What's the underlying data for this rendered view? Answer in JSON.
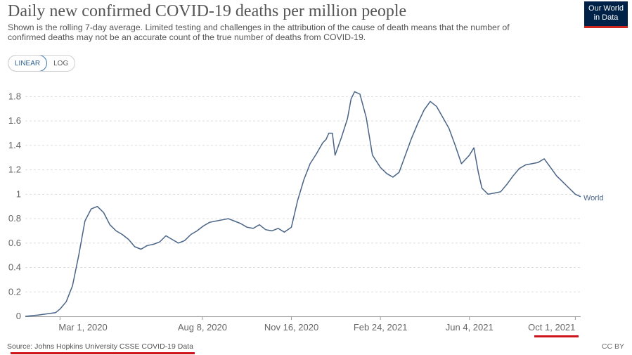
{
  "header": {
    "title": "Daily new confirmed COVID-19 deaths per million people",
    "subtitle": "Shown is the rolling 7-day average. Limited testing and challenges in the attribution of the cause of death means that the number of confirmed deaths may not be an accurate count of the true number of deaths from COVID-19."
  },
  "logo": {
    "line1": "Our World",
    "line2": "in Data"
  },
  "toggle": {
    "linear_label": "LINEAR",
    "log_label": "LOG"
  },
  "footer": {
    "source": "Source: Johns Hopkins University CSSE COVID-19 Data",
    "license": "CC BY"
  },
  "colors": {
    "line": "#4a6487",
    "logo_bg": "#002147",
    "accent_red": "#d0121b"
  },
  "chart_data": {
    "type": "line",
    "title": "Daily new confirmed COVID-19 deaths per million people",
    "xlabel": "",
    "ylabel": "",
    "x_ticks": [
      "Mar 1, 2020",
      "Aug 8, 2020",
      "Nov 16, 2020",
      "Feb 24, 2021",
      "Jun 4, 2021",
      "Oct 1, 2021"
    ],
    "y_ticks": [
      "0",
      "0.2",
      "0.4",
      "0.6",
      "0.8",
      "1",
      "1.2",
      "1.4",
      "1.6",
      "1.8"
    ],
    "ylim": [
      0,
      1.9
    ],
    "xlim": [
      "2020-01-22",
      "2021-10-07"
    ],
    "grid": "horizontal dashed",
    "series": [
      {
        "name": "World",
        "x": [
          "2020-01-22",
          "2020-02-05",
          "2020-02-15",
          "2020-02-25",
          "2020-03-01",
          "2020-03-08",
          "2020-03-15",
          "2020-03-22",
          "2020-03-29",
          "2020-04-05",
          "2020-04-12",
          "2020-04-19",
          "2020-04-26",
          "2020-05-03",
          "2020-05-10",
          "2020-05-17",
          "2020-05-24",
          "2020-05-31",
          "2020-06-07",
          "2020-06-14",
          "2020-06-21",
          "2020-06-28",
          "2020-07-05",
          "2020-07-12",
          "2020-07-19",
          "2020-07-26",
          "2020-08-02",
          "2020-08-09",
          "2020-08-16",
          "2020-08-23",
          "2020-08-30",
          "2020-09-06",
          "2020-09-13",
          "2020-09-20",
          "2020-09-27",
          "2020-10-04",
          "2020-10-11",
          "2020-10-18",
          "2020-10-25",
          "2020-11-01",
          "2020-11-08",
          "2020-11-16",
          "2020-11-23",
          "2020-11-30",
          "2020-12-07",
          "2020-12-14",
          "2020-12-21",
          "2020-12-25",
          "2020-12-28",
          "2021-01-01",
          "2021-01-04",
          "2021-01-11",
          "2021-01-18",
          "2021-01-22",
          "2021-01-26",
          "2021-02-01",
          "2021-02-08",
          "2021-02-15",
          "2021-02-24",
          "2021-03-03",
          "2021-03-10",
          "2021-03-17",
          "2021-03-24",
          "2021-03-31",
          "2021-04-07",
          "2021-04-14",
          "2021-04-21",
          "2021-04-28",
          "2021-05-05",
          "2021-05-12",
          "2021-05-19",
          "2021-05-26",
          "2021-06-04",
          "2021-06-09",
          "2021-06-14",
          "2021-06-18",
          "2021-06-25",
          "2021-07-02",
          "2021-07-09",
          "2021-07-16",
          "2021-07-23",
          "2021-07-30",
          "2021-08-06",
          "2021-08-13",
          "2021-08-20",
          "2021-08-27",
          "2021-09-03",
          "2021-09-10",
          "2021-09-17",
          "2021-09-24",
          "2021-10-01",
          "2021-10-07"
        ],
        "values": [
          0.0,
          0.01,
          0.02,
          0.03,
          0.06,
          0.12,
          0.25,
          0.5,
          0.78,
          0.88,
          0.9,
          0.85,
          0.75,
          0.7,
          0.67,
          0.63,
          0.57,
          0.55,
          0.58,
          0.59,
          0.61,
          0.66,
          0.63,
          0.6,
          0.62,
          0.67,
          0.7,
          0.74,
          0.77,
          0.78,
          0.79,
          0.8,
          0.78,
          0.76,
          0.73,
          0.72,
          0.75,
          0.71,
          0.7,
          0.72,
          0.69,
          0.73,
          0.95,
          1.12,
          1.25,
          1.33,
          1.42,
          1.45,
          1.5,
          1.5,
          1.32,
          1.46,
          1.62,
          1.78,
          1.84,
          1.82,
          1.63,
          1.32,
          1.22,
          1.17,
          1.14,
          1.18,
          1.32,
          1.46,
          1.58,
          1.69,
          1.76,
          1.72,
          1.63,
          1.54,
          1.4,
          1.25,
          1.32,
          1.38,
          1.18,
          1.05,
          1.0,
          1.01,
          1.02,
          1.08,
          1.15,
          1.21,
          1.24,
          1.25,
          1.26,
          1.29,
          1.22,
          1.15,
          1.1,
          1.05,
          1.0,
          0.98
        ]
      }
    ]
  }
}
